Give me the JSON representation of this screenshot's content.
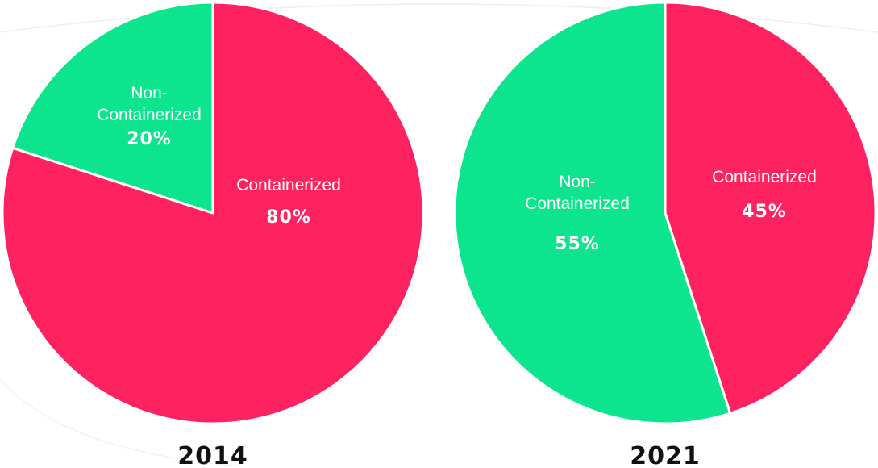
{
  "chart_data": [
    {
      "type": "pie",
      "title": "2014",
      "slices": [
        {
          "label_lines": [
            "Containerized"
          ],
          "value": 80,
          "value_label": "80%",
          "color": "#FF2261"
        },
        {
          "label_lines": [
            "Non-",
            "Containerized"
          ],
          "value": 20,
          "value_label": "20%",
          "color": "#0CE48E"
        }
      ]
    },
    {
      "type": "pie",
      "title": "2021",
      "slices": [
        {
          "label_lines": [
            "Containerized"
          ],
          "value": 45,
          "value_label": "45%",
          "color": "#FF2261"
        },
        {
          "label_lines": [
            "Non-",
            "Containerized"
          ],
          "value": 55,
          "value_label": "55%",
          "color": "#0CE48E"
        }
      ]
    }
  ]
}
